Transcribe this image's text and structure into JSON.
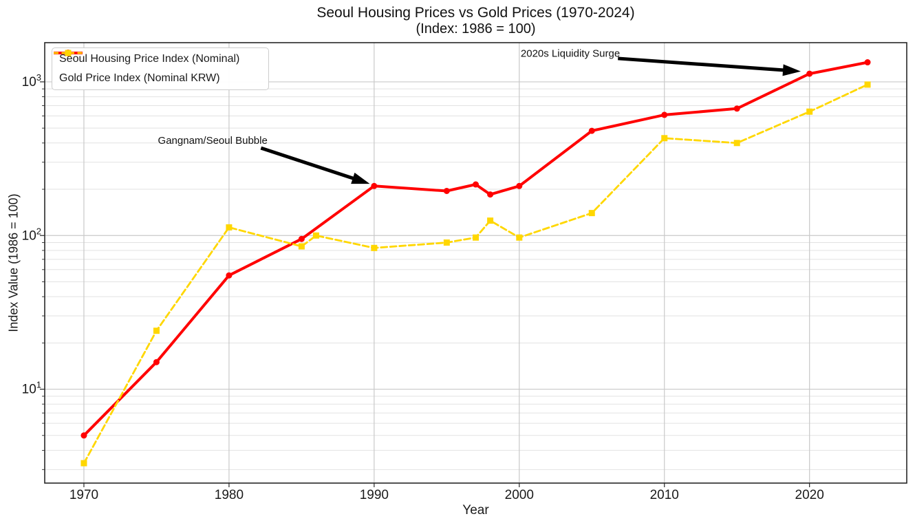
{
  "chart_data": {
    "type": "line",
    "title": "Seoul Housing Prices vs Gold Prices (1970-2024)",
    "subtitle": "(Index: 1986 = 100)",
    "xlabel": "Year",
    "ylabel": "Index Value (1986 = 100)",
    "x_axis": {
      "lim": [
        1967.3,
        2026.7
      ],
      "ticks": [
        1970,
        1980,
        1990,
        2000,
        2010,
        2020
      ]
    },
    "y_axis": {
      "scale": "log10",
      "lim_log10": [
        0.389,
        3.255
      ],
      "major_tick_exponents": [
        1,
        2,
        3
      ],
      "minor_ticks": [
        3,
        4,
        5,
        6,
        7,
        8,
        9,
        20,
        30,
        40,
        50,
        60,
        70,
        80,
        90,
        200,
        300,
        400,
        500,
        600,
        700,
        800,
        900
      ]
    },
    "grid": {
      "major": true,
      "minor": true,
      "major_color": "#c9c9c9",
      "minor_color": "#e2e2e2"
    },
    "legend_position": "upper left",
    "series": [
      {
        "name": "Seoul Housing Price Index (Nominal)",
        "color": "#FF0000",
        "line_style": "solid",
        "line_width": 4,
        "marker": "circle",
        "marker_size": 9,
        "points": [
          [
            1970,
            5
          ],
          [
            1975,
            15
          ],
          [
            1980,
            55
          ],
          [
            1985,
            95
          ],
          [
            1990,
            210
          ],
          [
            1995,
            195
          ],
          [
            1997,
            215
          ],
          [
            1998,
            185
          ],
          [
            2000,
            210
          ],
          [
            2005,
            480
          ],
          [
            2010,
            610
          ],
          [
            2015,
            670
          ],
          [
            2020,
            1130
          ],
          [
            2024,
            1340
          ]
        ]
      },
      {
        "name": "Gold Price Index (Nominal KRW)",
        "color": "#FFD700",
        "line_style": "dashed",
        "line_width": 2.8,
        "marker": "square",
        "marker_size": 9,
        "points": [
          [
            1970,
            3.3
          ],
          [
            1975,
            24
          ],
          [
            1980,
            113
          ],
          [
            1985,
            85
          ],
          [
            1986,
            100
          ],
          [
            1990,
            83
          ],
          [
            1995,
            90
          ],
          [
            1997,
            97
          ],
          [
            1998,
            125
          ],
          [
            2000,
            97
          ],
          [
            2005,
            140
          ],
          [
            2010,
            430
          ],
          [
            2015,
            400
          ],
          [
            2020,
            640
          ],
          [
            2024,
            960
          ]
        ]
      }
    ],
    "annotations": [
      {
        "text": "2020s Liquidity Surge",
        "color": "#000000",
        "text_year": 2000.1,
        "text_value": 1530,
        "arrow_start_year": 2006.8,
        "arrow_start_value": 1420,
        "arrow_end_year": 2019.4,
        "arrow_end_value": 1170
      },
      {
        "text": "Gangnam/Seoul Bubble",
        "color": "#000000",
        "text_year": 1975.1,
        "text_value": 415,
        "arrow_start_year": 1982.2,
        "arrow_start_value": 371,
        "arrow_end_year": 1989.7,
        "arrow_end_value": 217
      }
    ]
  }
}
